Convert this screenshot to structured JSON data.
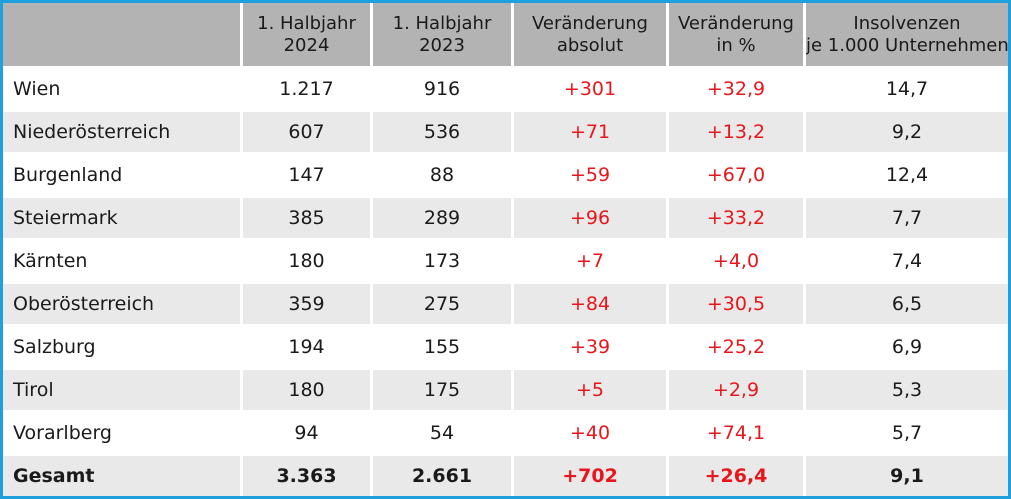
{
  "table": {
    "headers": [
      {
        "line1": "",
        "line2": ""
      },
      {
        "line1": "1. Halbjahr",
        "line2": "2024"
      },
      {
        "line1": "1. Halbjahr",
        "line2": "2023"
      },
      {
        "line1": "Veränderung",
        "line2": "absolut"
      },
      {
        "line1": "Veränderung",
        "line2": "in %"
      },
      {
        "line1": "Insolvenzen",
        "line2": "je 1.000 Unternehmen"
      }
    ],
    "rows": [
      {
        "region": "Wien",
        "h2024": "1.217",
        "h2023": "916",
        "abs": "+301",
        "pct": "+32,9",
        "per1000": "14,7"
      },
      {
        "region": "Niederösterreich",
        "h2024": "607",
        "h2023": "536",
        "abs": "+71",
        "pct": "+13,2",
        "per1000": "9,2"
      },
      {
        "region": "Burgenland",
        "h2024": "147",
        "h2023": "88",
        "abs": "+59",
        "pct": "+67,0",
        "per1000": "12,4"
      },
      {
        "region": "Steiermark",
        "h2024": "385",
        "h2023": "289",
        "abs": "+96",
        "pct": "+33,2",
        "per1000": "7,7"
      },
      {
        "region": "Kärnten",
        "h2024": "180",
        "h2023": "173",
        "abs": "+7",
        "pct": "+4,0",
        "per1000": "7,4"
      },
      {
        "region": "Oberösterreich",
        "h2024": "359",
        "h2023": "275",
        "abs": "+84",
        "pct": "+30,5",
        "per1000": "6,5"
      },
      {
        "region": "Salzburg",
        "h2024": "194",
        "h2023": "155",
        "abs": "+39",
        "pct": "+25,2",
        "per1000": "6,9"
      },
      {
        "region": "Tirol",
        "h2024": "180",
        "h2023": "175",
        "abs": "+5",
        "pct": "+2,9",
        "per1000": "5,3"
      },
      {
        "region": "Vorarlberg",
        "h2024": "94",
        "h2023": "54",
        "abs": "+40",
        "pct": "+74,1",
        "per1000": "5,7"
      }
    ],
    "total": {
      "region": "Gesamt",
      "h2024": "3.363",
      "h2023": "2.661",
      "abs": "+702",
      "pct": "+26,4",
      "per1000": "9,1"
    }
  },
  "colors": {
    "frame": "#1fa0dc",
    "header_bg": "#b3b3b3",
    "stripe_bg": "#e9e9e9",
    "change_text": "#e8161b"
  }
}
